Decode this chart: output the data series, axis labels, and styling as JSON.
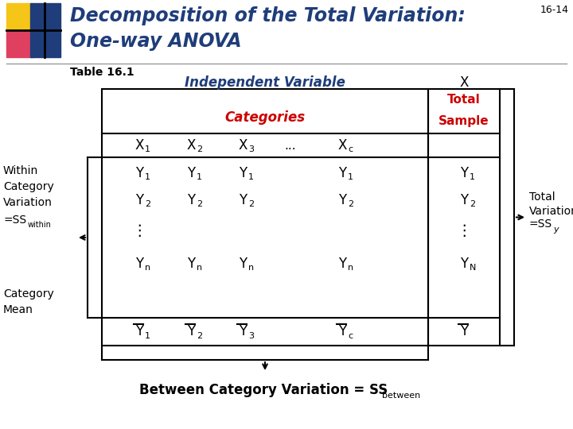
{
  "title_line1": "Decomposition of the Total Variation:",
  "title_line2": "One-way ANOVA",
  "slide_number": "16-14",
  "table_label": "Table 16.1",
  "indep_var_label": "Independent Variable",
  "x_label": "X",
  "categories_label": "Categories",
  "total_sample_line1": "Total",
  "total_sample_line2": "Sample",
  "title_color": "#1F3D7A",
  "red_color": "#CC0000",
  "black": "#000000",
  "bg_color": "#FFFFFF",
  "yellow_sq": "#F5C518",
  "red_sq": "#E04060",
  "blue_sq": "#1F3D7A",
  "lw": 1.5
}
